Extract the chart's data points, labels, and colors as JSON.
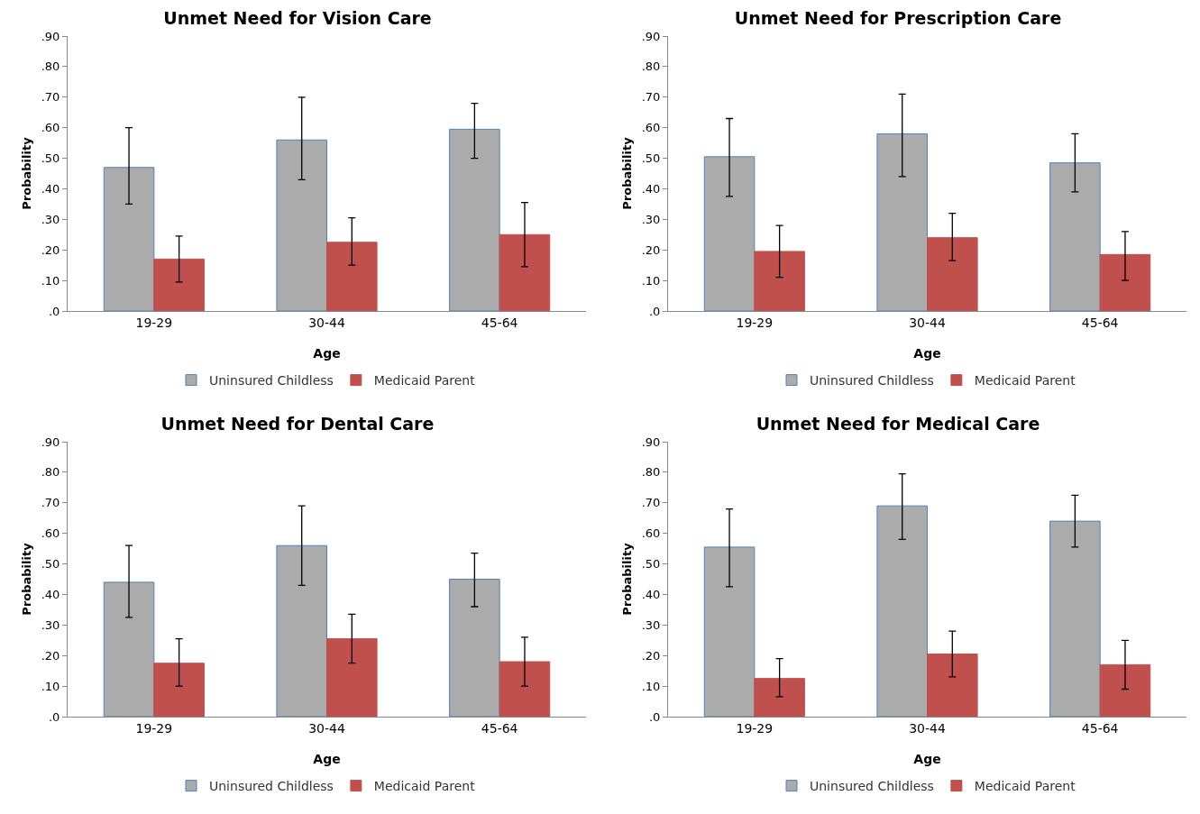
{
  "chart_data": [
    {
      "type": "bar",
      "title": "Unmet Need for Vision Care",
      "xlabel": "Age",
      "ylabel": "Probability",
      "categories": [
        "19-29",
        "30-44",
        "45-64"
      ],
      "series": [
        {
          "name": "Uninsured Childless",
          "color": "#ababab",
          "values": [
            0.47,
            0.56,
            0.595
          ],
          "errors": [
            [
              0.35,
              0.6
            ],
            [
              0.43,
              0.7
            ],
            [
              0.5,
              0.68
            ]
          ]
        },
        {
          "name": "Medicaid Parent",
          "color": "#c0504d",
          "values": [
            0.17,
            0.225,
            0.25
          ],
          "errors": [
            [
              0.095,
              0.245
            ],
            [
              0.15,
              0.305
            ],
            [
              0.145,
              0.355
            ]
          ]
        }
      ],
      "ylim": [
        0,
        0.9
      ],
      "yticks": [
        {
          "value": 0,
          "label": ".0"
        },
        {
          "value": 0.1,
          "label": ".10"
        },
        {
          "value": 0.2,
          "label": ".20"
        },
        {
          "value": 0.3,
          "label": ".30"
        },
        {
          "value": 0.4,
          "label": ".40"
        },
        {
          "value": 0.5,
          "label": ".50"
        },
        {
          "value": 0.6,
          "label": ".60"
        },
        {
          "value": 0.7,
          "label": ".70"
        },
        {
          "value": 0.8,
          "label": ".80"
        },
        {
          "value": 0.9,
          "label": ".90"
        }
      ],
      "grid": false,
      "legend": "bottom"
    },
    {
      "type": "bar",
      "title": "Unmet Need for Prescription Care",
      "xlabel": "Age",
      "ylabel": "Probability",
      "categories": [
        "19-29",
        "30-44",
        "45-64"
      ],
      "series": [
        {
          "name": "Uninsured Childless",
          "color": "#ababab",
          "values": [
            0.505,
            0.58,
            0.485
          ],
          "errors": [
            [
              0.375,
              0.63
            ],
            [
              0.44,
              0.71
            ],
            [
              0.39,
              0.58
            ]
          ]
        },
        {
          "name": "Medicaid Parent",
          "color": "#c0504d",
          "values": [
            0.195,
            0.24,
            0.185
          ],
          "errors": [
            [
              0.11,
              0.28
            ],
            [
              0.165,
              0.32
            ],
            [
              0.1,
              0.26
            ]
          ]
        }
      ],
      "ylim": [
        0,
        0.9
      ],
      "yticks": [
        {
          "value": 0,
          "label": ".0"
        },
        {
          "value": 0.1,
          "label": ".10"
        },
        {
          "value": 0.2,
          "label": ".20"
        },
        {
          "value": 0.3,
          "label": ".30"
        },
        {
          "value": 0.4,
          "label": ".40"
        },
        {
          "value": 0.5,
          "label": ".50"
        },
        {
          "value": 0.6,
          "label": ".60"
        },
        {
          "value": 0.7,
          "label": ".70"
        },
        {
          "value": 0.8,
          "label": ".80"
        },
        {
          "value": 0.9,
          "label": ".90"
        }
      ],
      "grid": false,
      "legend": "bottom"
    },
    {
      "type": "bar",
      "title": "Unmet Need for Dental Care",
      "xlabel": "Age",
      "ylabel": "Probability",
      "categories": [
        "19-29",
        "30-44",
        "45-64"
      ],
      "series": [
        {
          "name": "Uninsured Childless",
          "color": "#ababab",
          "values": [
            0.44,
            0.56,
            0.45
          ],
          "errors": [
            [
              0.325,
              0.56
            ],
            [
              0.43,
              0.69
            ],
            [
              0.36,
              0.535
            ]
          ]
        },
        {
          "name": "Medicaid Parent",
          "color": "#c0504d",
          "values": [
            0.175,
            0.255,
            0.18
          ],
          "errors": [
            [
              0.1,
              0.255
            ],
            [
              0.175,
              0.335
            ],
            [
              0.1,
              0.26
            ]
          ]
        }
      ],
      "ylim": [
        0,
        0.9
      ],
      "yticks": [
        {
          "value": 0,
          "label": ".0"
        },
        {
          "value": 0.1,
          "label": ".10"
        },
        {
          "value": 0.2,
          "label": ".20"
        },
        {
          "value": 0.3,
          "label": ".30"
        },
        {
          "value": 0.4,
          "label": ".40"
        },
        {
          "value": 0.5,
          "label": ".50"
        },
        {
          "value": 0.6,
          "label": ".60"
        },
        {
          "value": 0.7,
          "label": ".70"
        },
        {
          "value": 0.8,
          "label": ".80"
        },
        {
          "value": 0.9,
          "label": ".90"
        }
      ],
      "grid": false,
      "legend": "bottom"
    },
    {
      "type": "bar",
      "title": "Unmet Need for Medical Care",
      "xlabel": "Age",
      "ylabel": "Probability",
      "categories": [
        "19-29",
        "30-44",
        "45-64"
      ],
      "series": [
        {
          "name": "Uninsured Childless",
          "color": "#ababab",
          "values": [
            0.555,
            0.69,
            0.64
          ],
          "errors": [
            [
              0.425,
              0.68
            ],
            [
              0.58,
              0.795
            ],
            [
              0.555,
              0.725
            ]
          ]
        },
        {
          "name": "Medicaid Parent",
          "color": "#c0504d",
          "values": [
            0.125,
            0.205,
            0.17
          ],
          "errors": [
            [
              0.065,
              0.19
            ],
            [
              0.13,
              0.28
            ],
            [
              0.09,
              0.25
            ]
          ]
        }
      ],
      "ylim": [
        0,
        0.9
      ],
      "yticks": [
        {
          "value": 0,
          "label": ".0"
        },
        {
          "value": 0.1,
          "label": ".10"
        },
        {
          "value": 0.2,
          "label": ".20"
        },
        {
          "value": 0.3,
          "label": ".30"
        },
        {
          "value": 0.4,
          "label": ".40"
        },
        {
          "value": 0.5,
          "label": ".50"
        },
        {
          "value": 0.6,
          "label": ".60"
        },
        {
          "value": 0.7,
          "label": ".70"
        },
        {
          "value": 0.8,
          "label": ".80"
        },
        {
          "value": 0.9,
          "label": ".90"
        }
      ],
      "grid": false,
      "legend": "bottom"
    }
  ]
}
